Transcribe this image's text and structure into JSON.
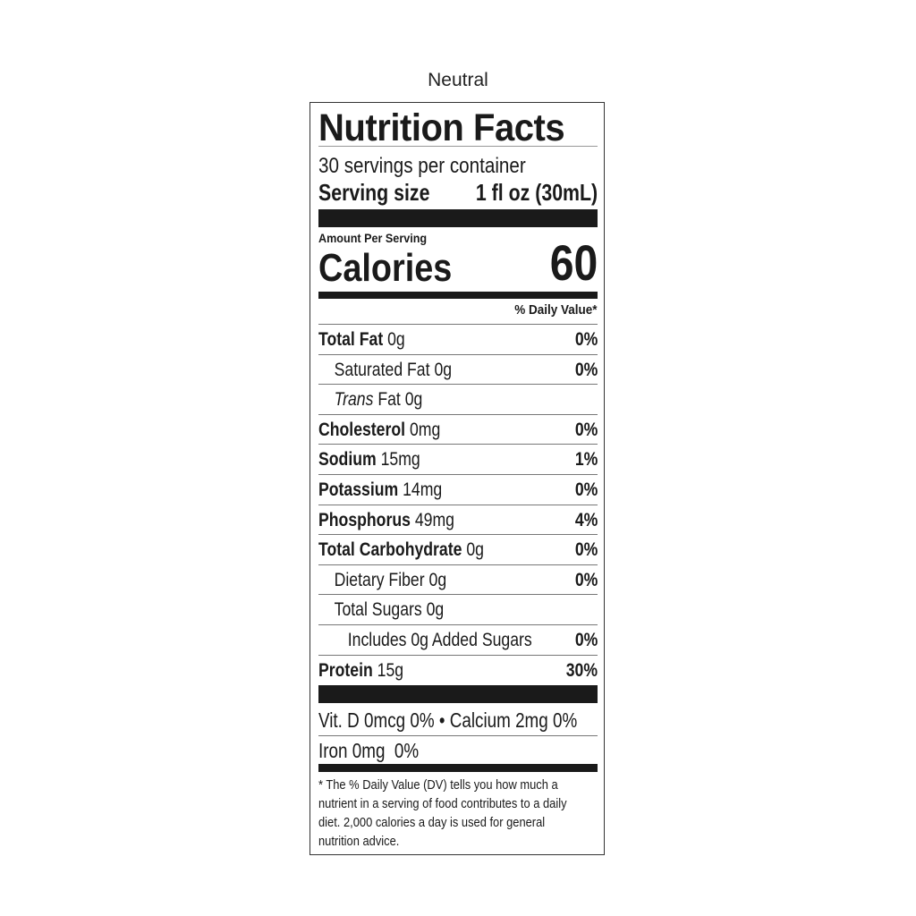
{
  "caption": "Neutral",
  "title": "Nutrition Facts",
  "servings_per_container": "30 servings per container",
  "serving_size_label": "Serving size",
  "serving_size_value": "1 fl oz (30mL)",
  "amount_per_serving": "Amount Per Serving",
  "calories_label": "Calories",
  "calories_value": "60",
  "daily_value_header": "% Daily Value*",
  "nutrients": [
    {
      "name": "Total Fat",
      "amount": "0g",
      "dv": "0%",
      "bold": true,
      "indent": 0
    },
    {
      "name": "Saturated Fat",
      "amount": "0g",
      "dv": "0%",
      "bold": false,
      "indent": 1
    },
    {
      "name": "Trans",
      "name_suffix": "Fat",
      "amount": "0g",
      "dv": "",
      "bold": false,
      "indent": 1
    },
    {
      "name": "Cholesterol",
      "amount": "0mg",
      "dv": "0%",
      "bold": true,
      "indent": 0
    },
    {
      "name": "Sodium",
      "amount": "15mg",
      "dv": "1%",
      "bold": true,
      "indent": 0
    },
    {
      "name": "Potassium",
      "amount": "14mg",
      "dv": "0%",
      "bold": true,
      "indent": 0
    },
    {
      "name": "Phosphorus",
      "amount": "49mg",
      "dv": "4%",
      "bold": true,
      "indent": 0
    },
    {
      "name": "Total Carbohydrate",
      "amount": "0g",
      "dv": "0%",
      "bold": true,
      "indent": 0
    },
    {
      "name": "Dietary Fiber",
      "amount": "0g",
      "dv": "0%",
      "bold": false,
      "indent": 1
    },
    {
      "name": "Total Sugars",
      "amount": "0g",
      "dv": "",
      "bold": false,
      "indent": 1
    },
    {
      "name": "Includes 0g Added Sugars",
      "amount": "",
      "dv": "0%",
      "bold": false,
      "indent": 2
    },
    {
      "name": "Protein",
      "amount": "15g",
      "dv": "30%",
      "bold": true,
      "indent": 0
    }
  ],
  "vitamins_line1": "Vit. D 0mcg 0% • Calcium 2mg 0%",
  "vitamins_line2": "Iron 0mg  0%",
  "footnote": "* The % Daily Value (DV) tells you how much a nutrient in a serving of food contributes to a daily diet. 2,000 calories a day is used for general nutrition advice."
}
